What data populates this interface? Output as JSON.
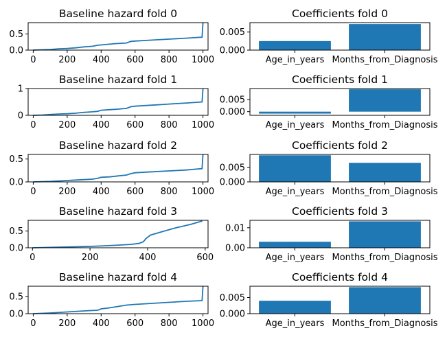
{
  "chart_data": [
    {
      "type": "line",
      "title": "Baseline hazard fold 0",
      "xlim": [
        -30,
        1030
      ],
      "ylim": [
        0,
        0.85
      ],
      "xticks": [
        0,
        200,
        400,
        600,
        800,
        1000
      ],
      "yticks": [
        0.0,
        0.5
      ],
      "ytick_labels": [
        "0.0",
        "0.5"
      ],
      "x": [
        0,
        50,
        100,
        150,
        200,
        250,
        280,
        300,
        350,
        380,
        420,
        480,
        550,
        575,
        600,
        700,
        800,
        900,
        995,
        1000
      ],
      "y": [
        0.0,
        0.01,
        0.02,
        0.04,
        0.05,
        0.07,
        0.09,
        0.1,
        0.12,
        0.15,
        0.17,
        0.2,
        0.22,
        0.27,
        0.28,
        0.31,
        0.34,
        0.37,
        0.4,
        0.85
      ]
    },
    {
      "type": "bar",
      "title": "Coefficients fold 0",
      "categories": [
        "Age_in_years",
        "Months_from_Diagnosis"
      ],
      "values": [
        0.0025,
        0.0072
      ],
      "ylim": [
        0,
        0.0076
      ],
      "yticks": [
        0.0,
        0.005
      ],
      "ytick_labels": [
        "0.000",
        "0.005"
      ]
    },
    {
      "type": "line",
      "title": "Baseline hazard fold 1",
      "xlim": [
        -30,
        1030
      ],
      "ylim": [
        0,
        1.0
      ],
      "xticks": [
        0,
        200,
        400,
        600,
        800,
        1000
      ],
      "yticks": [
        0,
        1
      ],
      "ytick_labels": [
        "0",
        "1"
      ],
      "x": [
        0,
        50,
        100,
        150,
        200,
        250,
        280,
        300,
        350,
        380,
        400,
        450,
        500,
        550,
        575,
        600,
        700,
        800,
        900,
        995,
        1000
      ],
      "y": [
        0.0,
        0.01,
        0.03,
        0.05,
        0.06,
        0.08,
        0.1,
        0.11,
        0.13,
        0.15,
        0.19,
        0.21,
        0.23,
        0.26,
        0.32,
        0.34,
        0.38,
        0.42,
        0.46,
        0.5,
        1.0
      ]
    },
    {
      "type": "bar",
      "title": "Coefficients fold 1",
      "categories": [
        "Age_in_years",
        "Months_from_Diagnosis"
      ],
      "values": [
        -0.0008,
        0.0092
      ],
      "ylim": [
        -0.0015,
        0.0095
      ],
      "yticks": [
        0.0,
        0.005
      ],
      "ytick_labels": [
        "0.000",
        "0.005"
      ]
    },
    {
      "type": "line",
      "title": "Baseline hazard fold 2",
      "xlim": [
        -30,
        1030
      ],
      "ylim": [
        0,
        0.6
      ],
      "xticks": [
        0,
        200,
        400,
        600,
        800,
        1000
      ],
      "yticks": [
        0.0,
        0.5
      ],
      "ytick_labels": [
        "0.0",
        "0.5"
      ],
      "x": [
        0,
        100,
        200,
        250,
        300,
        350,
        380,
        400,
        450,
        500,
        550,
        575,
        600,
        700,
        800,
        900,
        995,
        1000
      ],
      "y": [
        0.0,
        0.01,
        0.03,
        0.04,
        0.05,
        0.06,
        0.08,
        0.1,
        0.11,
        0.13,
        0.15,
        0.18,
        0.2,
        0.22,
        0.24,
        0.26,
        0.29,
        0.6
      ]
    },
    {
      "type": "bar",
      "title": "Coefficients fold 2",
      "categories": [
        "Age_in_years",
        "Months_from_Diagnosis"
      ],
      "values": [
        0.0092,
        0.0066
      ],
      "ylim": [
        0,
        0.0095
      ],
      "yticks": [
        0.0,
        0.005
      ],
      "ytick_labels": [
        "0.000",
        "0.005"
      ]
    },
    {
      "type": "line",
      "title": "Baseline hazard fold 3",
      "xlim": [
        -15,
        610
      ],
      "ylim": [
        0,
        0.82
      ],
      "xticks": [
        0,
        200,
        400,
        600
      ],
      "yticks": [
        0.0,
        0.5
      ],
      "ytick_labels": [
        "0.0",
        "0.5"
      ],
      "x": [
        0,
        50,
        100,
        150,
        200,
        250,
        300,
        340,
        370,
        385,
        395,
        410,
        450,
        500,
        550,
        590
      ],
      "y": [
        0.0,
        0.01,
        0.02,
        0.03,
        0.04,
        0.06,
        0.08,
        0.1,
        0.13,
        0.18,
        0.28,
        0.38,
        0.48,
        0.6,
        0.7,
        0.8
      ]
    },
    {
      "type": "bar",
      "title": "Coefficients fold 3",
      "categories": [
        "Age_in_years",
        "Months_from_Diagnosis"
      ],
      "values": [
        0.003,
        0.0132
      ],
      "ylim": [
        0,
        0.0137
      ],
      "yticks": [
        0.0,
        0.01
      ],
      "ytick_labels": [
        "0.00",
        "0.01"
      ]
    },
    {
      "type": "line",
      "title": "Baseline hazard fold 4",
      "xlim": [
        -30,
        1030
      ],
      "ylim": [
        0,
        0.8
      ],
      "xticks": [
        0,
        200,
        400,
        600,
        800,
        1000
      ],
      "yticks": [
        0.0,
        0.5
      ],
      "ytick_labels": [
        "0.0",
        "0.5"
      ],
      "x": [
        0,
        100,
        200,
        300,
        380,
        400,
        450,
        500,
        550,
        600,
        700,
        800,
        900,
        995,
        1000
      ],
      "y": [
        0.0,
        0.02,
        0.05,
        0.08,
        0.1,
        0.14,
        0.17,
        0.21,
        0.25,
        0.27,
        0.3,
        0.33,
        0.36,
        0.38,
        0.8
      ]
    },
    {
      "type": "bar",
      "title": "Coefficients fold 4",
      "categories": [
        "Age_in_years",
        "Months_from_Diagnosis"
      ],
      "values": [
        0.004,
        0.0082
      ],
      "ylim": [
        0,
        0.0085
      ],
      "yticks": [
        0.0,
        0.005
      ],
      "ytick_labels": [
        "0.000",
        "0.005"
      ]
    }
  ]
}
